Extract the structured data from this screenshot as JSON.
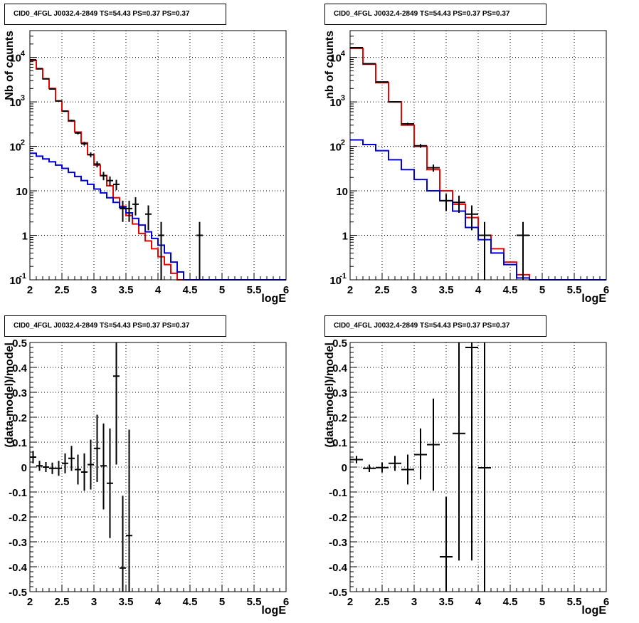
{
  "pad_title": "CID0_4FGL J0032.4-2849 TS=54.43 PS=0.37 PS=0.37",
  "colors": {
    "model_total": "#ee0000",
    "model_background": "#0000dd",
    "data": "#000000",
    "grid": "#000000"
  },
  "chart_data": [
    {
      "id": "counts_fine",
      "type": "histogram",
      "title": "CID0_4FGL J0032.4-2849 TS=54.43 PS=0.37 PS=0.37",
      "xlabel": "logE",
      "ylabel": "Nb of counts",
      "xlim": [
        2,
        6
      ],
      "ylim": [
        0.1,
        40000
      ],
      "yscale": "log",
      "grid": true,
      "xticks": [
        "2",
        "2.5",
        "3",
        "3.5",
        "4",
        "4.5",
        "5",
        "5.5",
        "6"
      ],
      "yticks": [
        {
          "v": 0.1,
          "label": "10",
          "sup": "-1"
        },
        {
          "v": 1,
          "label": "1",
          "sup": ""
        },
        {
          "v": 10,
          "label": "10",
          "sup": ""
        },
        {
          "v": 100,
          "label": "10",
          "sup": "2"
        },
        {
          "v": 1000,
          "label": "10",
          "sup": "3"
        },
        {
          "v": 10000,
          "label": "10",
          "sup": "4"
        }
      ],
      "bin_edges": [
        2,
        2.1,
        2.2,
        2.3,
        2.4,
        2.5,
        2.6,
        2.7,
        2.8,
        2.9,
        3,
        3.1,
        3.2,
        3.3,
        3.4,
        3.5,
        3.6,
        3.7,
        3.8,
        3.9,
        4,
        4.1,
        4.2,
        4.3,
        4.4,
        4.5,
        4.6,
        4.7,
        4.8,
        4.9,
        5,
        5.1,
        5.2,
        5.3,
        5.4,
        5.5,
        5.6,
        5.7,
        5.8,
        5.9,
        6
      ],
      "series": [
        {
          "name": "",
          "color_key": "model_total",
          "values": [
            8500,
            5500,
            3300,
            2000,
            1050,
            620,
            370,
            210,
            120,
            65,
            38,
            22,
            13,
            7,
            4.5,
            2.8,
            1.8,
            1.1,
            0.75,
            0.5,
            0.33,
            0.22,
            0.14,
            0.1,
            0.1,
            0.1,
            0.1,
            0.1,
            0.1,
            0.1,
            0.1,
            0.1,
            0.1,
            0.1,
            0.1,
            0.1,
            0.1,
            0.1,
            0.1,
            0.1
          ]
        },
        {
          "name": "",
          "color_key": "model_background",
          "values": [
            70,
            60,
            52,
            45,
            38,
            32,
            26,
            21,
            17,
            14,
            11,
            9,
            7,
            5.5,
            4.3,
            3.2,
            2.4,
            1.7,
            1.2,
            0.85,
            0.6,
            0.4,
            0.25,
            0.15,
            0.1,
            0.1,
            0.1,
            0.1,
            0.1,
            0.1,
            0.1,
            0.1,
            0.1,
            0.1,
            0.1,
            0.1,
            0.1,
            0.1,
            0.1,
            0.1
          ]
        }
      ],
      "data_points": [
        {
          "x": 2.05,
          "y": 8800,
          "err": 95
        },
        {
          "x": 2.15,
          "y": 5600,
          "err": 75
        },
        {
          "x": 2.25,
          "y": 3300,
          "err": 58
        },
        {
          "x": 2.35,
          "y": 1950,
          "err": 44
        },
        {
          "x": 2.45,
          "y": 1050,
          "err": 32
        },
        {
          "x": 2.55,
          "y": 620,
          "err": 25
        },
        {
          "x": 2.65,
          "y": 380,
          "err": 19
        },
        {
          "x": 2.75,
          "y": 200,
          "err": 14
        },
        {
          "x": 2.85,
          "y": 115,
          "err": 11
        },
        {
          "x": 2.95,
          "y": 65,
          "err": 8
        },
        {
          "x": 3.05,
          "y": 40,
          "err": 6.3
        },
        {
          "x": 3.15,
          "y": 22,
          "err": 4.7
        },
        {
          "x": 3.25,
          "y": 17,
          "err": 4.1
        },
        {
          "x": 3.35,
          "y": 14,
          "err": 3.7
        },
        {
          "x": 3.45,
          "y": 4,
          "err": 2
        },
        {
          "x": 3.55,
          "y": 4,
          "err": 2
        },
        {
          "x": 3.65,
          "y": 5,
          "err": 2.2
        },
        {
          "x": 3.85,
          "y": 3,
          "err": 1.7
        },
        {
          "x": 4.05,
          "y": 1,
          "err": 1
        },
        {
          "x": 4.65,
          "y": 1,
          "err": 1
        }
      ]
    },
    {
      "id": "counts_coarse",
      "type": "histogram",
      "title": "CID0_4FGL J0032.4-2849 TS=54.43 PS=0.37 PS=0.37",
      "xlabel": "logE",
      "ylabel": "nb of counts",
      "xlim": [
        2,
        6
      ],
      "ylim": [
        0.1,
        40000
      ],
      "yscale": "log",
      "grid": true,
      "xticks": [
        "2",
        "2.5",
        "3",
        "3.5",
        "4",
        "4.5",
        "5",
        "5.5",
        "6"
      ],
      "yticks": [
        {
          "v": 0.1,
          "label": "10",
          "sup": "-1"
        },
        {
          "v": 1,
          "label": "1",
          "sup": ""
        },
        {
          "v": 10,
          "label": "10",
          "sup": ""
        },
        {
          "v": 100,
          "label": "10",
          "sup": "2"
        },
        {
          "v": 1000,
          "label": "10",
          "sup": "3"
        },
        {
          "v": 10000,
          "label": "10",
          "sup": "4"
        }
      ],
      "bin_edges": [
        2,
        2.2,
        2.4,
        2.6,
        2.8,
        3,
        3.2,
        3.4,
        3.6,
        3.8,
        4,
        4.2,
        4.4,
        4.6,
        4.8,
        5,
        5.2,
        5.4,
        5.6,
        5.8,
        6
      ],
      "series": [
        {
          "name": "",
          "color_key": "model_total",
          "values": [
            16000,
            7000,
            2700,
            1000,
            300,
            100,
            30,
            10,
            5,
            2.5,
            1,
            0.5,
            0.25,
            0.13,
            0.1,
            0.1,
            0.1,
            0.1,
            0.1,
            0.1
          ]
        },
        {
          "name": "",
          "color_key": "model_background",
          "values": [
            140,
            110,
            80,
            50,
            30,
            18,
            10,
            6,
            3.5,
            1.5,
            0.8,
            0.4,
            0.22,
            0.11,
            0.1,
            0.1,
            0.1,
            0.1,
            0.1,
            0.1
          ]
        }
      ],
      "data_points": [
        {
          "x": 2.1,
          "y": 16500,
          "err": 128
        },
        {
          "x": 2.3,
          "y": 7200,
          "err": 85
        },
        {
          "x": 2.5,
          "y": 2800,
          "err": 53
        },
        {
          "x": 2.7,
          "y": 1000,
          "err": 32
        },
        {
          "x": 2.9,
          "y": 320,
          "err": 18
        },
        {
          "x": 3.1,
          "y": 103,
          "err": 10
        },
        {
          "x": 3.3,
          "y": 33,
          "err": 6
        },
        {
          "x": 3.5,
          "y": 6,
          "err": 2.5
        },
        {
          "x": 3.7,
          "y": 5.5,
          "err": 2.3
        },
        {
          "x": 3.9,
          "y": 3,
          "err": 1.7
        },
        {
          "x": 4.1,
          "y": 1,
          "err": 1
        },
        {
          "x": 4.7,
          "y": 1,
          "err": 1
        }
      ]
    },
    {
      "id": "residuals_fine",
      "type": "scatter",
      "title": "CID0_4FGL J0032.4-2849 TS=54.43 PS=0.37 PS=0.37",
      "xlabel": "logE",
      "ylabel": "(data-model)/model",
      "xlim": [
        2,
        6
      ],
      "ylim": [
        -0.5,
        0.5
      ],
      "yscale": "linear",
      "grid": true,
      "xticks": [
        "2",
        "2.5",
        "3",
        "3.5",
        "4",
        "4.5",
        "5",
        "5.5",
        "6"
      ],
      "yticks": [
        "-0.5",
        "-0.4",
        "-0.3",
        "-0.2",
        "-0.1",
        "0",
        "0.1",
        "0.2",
        "0.3",
        "0.4",
        "0.5"
      ],
      "bin_halfwidth": 0.05,
      "data_points": [
        {
          "x": 2.05,
          "y": 0.04,
          "lo": 0.015,
          "hi": 0.065
        },
        {
          "x": 2.15,
          "y": 0.005,
          "lo": -0.015,
          "hi": 0.025
        },
        {
          "x": 2.25,
          "y": 0.0,
          "lo": -0.02,
          "hi": 0.02
        },
        {
          "x": 2.35,
          "y": -0.005,
          "lo": -0.028,
          "hi": 0.018
        },
        {
          "x": 2.45,
          "y": -0.005,
          "lo": -0.035,
          "hi": 0.025
        },
        {
          "x": 2.55,
          "y": 0.015,
          "lo": -0.025,
          "hi": 0.055
        },
        {
          "x": 2.65,
          "y": 0.035,
          "lo": -0.015,
          "hi": 0.085
        },
        {
          "x": 2.75,
          "y": -0.01,
          "lo": -0.07,
          "hi": 0.05
        },
        {
          "x": 2.85,
          "y": -0.02,
          "lo": -0.095,
          "hi": 0.055
        },
        {
          "x": 2.95,
          "y": 0.01,
          "lo": -0.09,
          "hi": 0.11
        },
        {
          "x": 3.05,
          "y": 0.075,
          "lo": -0.06,
          "hi": 0.21
        },
        {
          "x": 3.15,
          "y": 0.005,
          "lo": -0.17,
          "hi": 0.175
        },
        {
          "x": 3.25,
          "y": -0.065,
          "lo": -0.285,
          "hi": 0.155
        },
        {
          "x": 3.35,
          "y": 0.365,
          "lo": 0.01,
          "hi": 0.72
        },
        {
          "x": 3.45,
          "y": -0.405,
          "lo": -0.7,
          "hi": -0.115
        },
        {
          "x": 3.55,
          "y": -0.275,
          "lo": -0.7,
          "hi": 0.15
        }
      ]
    },
    {
      "id": "residuals_coarse",
      "type": "scatter",
      "title": "CID0_4FGL J0032.4-2849 TS=54.43 PS=0.37 PS=0.37",
      "xlabel": "logE",
      "ylabel": "(data-model)/model",
      "xlim": [
        2,
        6
      ],
      "ylim": [
        -0.5,
        0.5
      ],
      "yscale": "linear",
      "grid": true,
      "xticks": [
        "2",
        "2.5",
        "3",
        "3.5",
        "4",
        "4.5",
        "5",
        "5.5",
        "6"
      ],
      "yticks": [
        "-0.5",
        "-0.4",
        "-0.3",
        "-0.2",
        "-0.1",
        "0",
        "0.1",
        "0.2",
        "0.3",
        "0.4",
        "0.5"
      ],
      "bin_halfwidth": 0.1,
      "data_points": [
        {
          "x": 2.1,
          "y": 0.03,
          "lo": 0.015,
          "hi": 0.045
        },
        {
          "x": 2.3,
          "y": -0.005,
          "lo": -0.02,
          "hi": 0.01
        },
        {
          "x": 2.5,
          "y": -0.002,
          "lo": -0.022,
          "hi": 0.018
        },
        {
          "x": 2.7,
          "y": 0.015,
          "lo": -0.015,
          "hi": 0.045
        },
        {
          "x": 2.9,
          "y": -0.01,
          "lo": -0.07,
          "hi": 0.05
        },
        {
          "x": 3.1,
          "y": 0.05,
          "lo": -0.05,
          "hi": 0.155
        },
        {
          "x": 3.3,
          "y": 0.09,
          "lo": -0.095,
          "hi": 0.275
        },
        {
          "x": 3.5,
          "y": -0.36,
          "lo": -0.7,
          "hi": -0.12
        },
        {
          "x": 3.7,
          "y": 0.135,
          "lo": -0.375,
          "hi": 0.64
        },
        {
          "x": 3.9,
          "y": 0.48,
          "lo": -0.375,
          "hi": 1.3
        },
        {
          "x": 4.1,
          "y": -0.003,
          "lo": -1.0,
          "hi": 1.0
        }
      ]
    }
  ]
}
